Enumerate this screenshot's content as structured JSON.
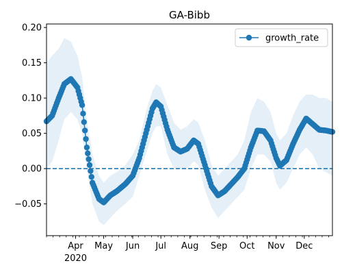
{
  "chart_data": {
    "type": "line",
    "title": "GA-Bibb",
    "xlabel": "",
    "ylabel": "",
    "x_range": [
      "2020-03-01",
      "2020-12-31"
    ],
    "ylim": [
      -0.095,
      0.205
    ],
    "yticks": [
      -0.05,
      0.0,
      0.05,
      0.1,
      0.15,
      0.2
    ],
    "ytick_labels": [
      "−0.05",
      "0.00",
      "0.05",
      "0.10",
      "0.15",
      "0.20"
    ],
    "xticks": [
      {
        "date": "2020-04-01",
        "label": "Apr",
        "sublabel": "2020"
      },
      {
        "date": "2020-05-01",
        "label": "May"
      },
      {
        "date": "2020-06-01",
        "label": "Jun"
      },
      {
        "date": "2020-07-01",
        "label": "Jul"
      },
      {
        "date": "2020-08-01",
        "label": "Aug"
      },
      {
        "date": "2020-09-01",
        "label": "Sep"
      },
      {
        "date": "2020-10-01",
        "label": "Oct"
      },
      {
        "date": "2020-11-01",
        "label": "Nov"
      },
      {
        "date": "2020-12-01",
        "label": "Dec"
      }
    ],
    "reference_line": {
      "y": 0.0,
      "style": "dashed",
      "color": "#1f77b4"
    },
    "legend": {
      "placement": "top-right",
      "entries": [
        "growth_rate"
      ]
    },
    "grid": false,
    "series": [
      {
        "name": "growth_rate",
        "color": "#1f77b4",
        "band_color": "#c6dbef",
        "key_points": [
          {
            "x": "2020-03-01",
            "y": 0.067,
            "lo": 0.0,
            "hi": 0.15
          },
          {
            "x": "2020-03-07",
            "y": 0.075,
            "lo": 0.01,
            "hi": 0.16
          },
          {
            "x": "2020-03-14",
            "y": 0.1,
            "lo": 0.04,
            "hi": 0.17
          },
          {
            "x": "2020-03-20",
            "y": 0.12,
            "lo": 0.07,
            "hi": 0.185
          },
          {
            "x": "2020-03-27",
            "y": 0.127,
            "lo": 0.08,
            "hi": 0.18
          },
          {
            "x": "2020-04-03",
            "y": 0.115,
            "lo": 0.07,
            "hi": 0.16
          },
          {
            "x": "2020-04-08",
            "y": 0.09,
            "lo": 0.05,
            "hi": 0.13
          },
          {
            "x": "2020-04-13",
            "y": 0.03,
            "lo": 0.0,
            "hi": 0.07
          },
          {
            "x": "2020-04-19",
            "y": -0.02,
            "lo": -0.05,
            "hi": 0.02
          },
          {
            "x": "2020-04-26",
            "y": -0.043,
            "lo": -0.075,
            "hi": -0.01
          },
          {
            "x": "2020-05-01",
            "y": -0.048,
            "lo": -0.08,
            "hi": -0.02
          },
          {
            "x": "2020-05-08",
            "y": -0.038,
            "lo": -0.07,
            "hi": -0.01
          },
          {
            "x": "2020-05-15",
            "y": -0.032,
            "lo": -0.06,
            "hi": -0.005
          },
          {
            "x": "2020-05-24",
            "y": -0.022,
            "lo": -0.05,
            "hi": 0.005
          },
          {
            "x": "2020-06-01",
            "y": -0.01,
            "lo": -0.04,
            "hi": 0.02
          },
          {
            "x": "2020-06-08",
            "y": 0.015,
            "lo": -0.01,
            "hi": 0.04
          },
          {
            "x": "2020-06-15",
            "y": 0.05,
            "lo": 0.02,
            "hi": 0.08
          },
          {
            "x": "2020-06-22",
            "y": 0.085,
            "lo": 0.05,
            "hi": 0.11
          },
          {
            "x": "2020-06-26",
            "y": 0.094,
            "lo": 0.06,
            "hi": 0.12
          },
          {
            "x": "2020-07-01",
            "y": 0.088,
            "lo": 0.06,
            "hi": 0.115
          },
          {
            "x": "2020-07-08",
            "y": 0.055,
            "lo": 0.02,
            "hi": 0.09
          },
          {
            "x": "2020-07-15",
            "y": 0.03,
            "lo": 0.0,
            "hi": 0.065
          },
          {
            "x": "2020-07-22",
            "y": 0.024,
            "lo": 0.0,
            "hi": 0.055
          },
          {
            "x": "2020-07-29",
            "y": 0.028,
            "lo": 0.0,
            "hi": 0.06
          },
          {
            "x": "2020-08-05",
            "y": 0.04,
            "lo": 0.01,
            "hi": 0.07
          },
          {
            "x": "2020-08-10",
            "y": 0.035,
            "lo": 0.005,
            "hi": 0.065
          },
          {
            "x": "2020-08-17",
            "y": 0.005,
            "lo": -0.03,
            "hi": 0.04
          },
          {
            "x": "2020-08-24",
            "y": -0.025,
            "lo": -0.055,
            "hi": 0.005
          },
          {
            "x": "2020-08-31",
            "y": -0.038,
            "lo": -0.07,
            "hi": -0.01
          },
          {
            "x": "2020-09-07",
            "y": -0.032,
            "lo": -0.06,
            "hi": 0.0
          },
          {
            "x": "2020-09-14",
            "y": -0.022,
            "lo": -0.05,
            "hi": 0.01
          },
          {
            "x": "2020-09-21",
            "y": -0.012,
            "lo": -0.04,
            "hi": 0.02
          },
          {
            "x": "2020-09-28",
            "y": 0.0,
            "lo": -0.03,
            "hi": 0.04
          },
          {
            "x": "2020-10-05",
            "y": 0.03,
            "lo": 0.0,
            "hi": 0.08
          },
          {
            "x": "2020-10-12",
            "y": 0.054,
            "lo": 0.02,
            "hi": 0.1
          },
          {
            "x": "2020-10-19",
            "y": 0.053,
            "lo": 0.02,
            "hi": 0.095
          },
          {
            "x": "2020-10-26",
            "y": 0.04,
            "lo": 0.01,
            "hi": 0.08
          },
          {
            "x": "2020-11-01",
            "y": 0.015,
            "lo": -0.02,
            "hi": 0.05
          },
          {
            "x": "2020-11-05",
            "y": 0.004,
            "lo": -0.03,
            "hi": 0.04
          },
          {
            "x": "2020-11-12",
            "y": 0.012,
            "lo": -0.02,
            "hi": 0.05
          },
          {
            "x": "2020-11-19",
            "y": 0.035,
            "lo": 0.0,
            "hi": 0.075
          },
          {
            "x": "2020-11-26",
            "y": 0.055,
            "lo": 0.02,
            "hi": 0.095
          },
          {
            "x": "2020-12-03",
            "y": 0.071,
            "lo": 0.03,
            "hi": 0.105
          },
          {
            "x": "2020-12-10",
            "y": 0.063,
            "lo": 0.02,
            "hi": 0.105
          },
          {
            "x": "2020-12-17",
            "y": 0.055,
            "lo": 0.0,
            "hi": 0.1
          },
          {
            "x": "2020-12-24",
            "y": 0.054,
            "lo": -0.005,
            "hi": 0.1
          },
          {
            "x": "2020-12-31",
            "y": 0.052,
            "lo": -0.01,
            "hi": 0.095
          }
        ]
      }
    ]
  }
}
